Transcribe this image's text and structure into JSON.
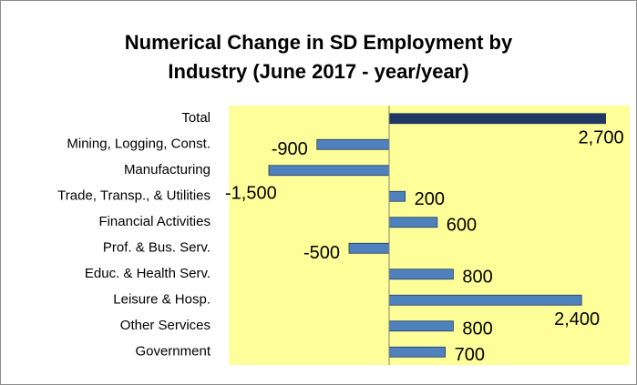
{
  "chart_data": {
    "type": "barh",
    "title": "Numerical Change in SD Employment by Industry (June 2017 - year/year)",
    "categories": [
      "Total",
      "Mining, Logging, Const.",
      "Manufacturing",
      "Trade, Transp., & Utilities",
      "Financial Activities",
      "Prof. & Bus. Serv.",
      "Educ. & Health Serv.",
      "Leisure & Hosp.",
      "Other Services",
      "Government"
    ],
    "values": [
      2700,
      -900,
      -1500,
      200,
      600,
      -500,
      800,
      2400,
      800,
      700
    ],
    "value_labels": [
      "2,700",
      "-900",
      "-1,500",
      "200",
      "600",
      "-500",
      "800",
      "2,400",
      "800",
      "700"
    ],
    "colors": [
      "#1f3864",
      "#4f81bd",
      "#4f81bd",
      "#4f81bd",
      "#4f81bd",
      "#4f81bd",
      "#4f81bd",
      "#4f81bd",
      "#4f81bd",
      "#4f81bd"
    ],
    "xlim": [
      -2000,
      3000
    ],
    "plot_background": "#ffff99"
  }
}
